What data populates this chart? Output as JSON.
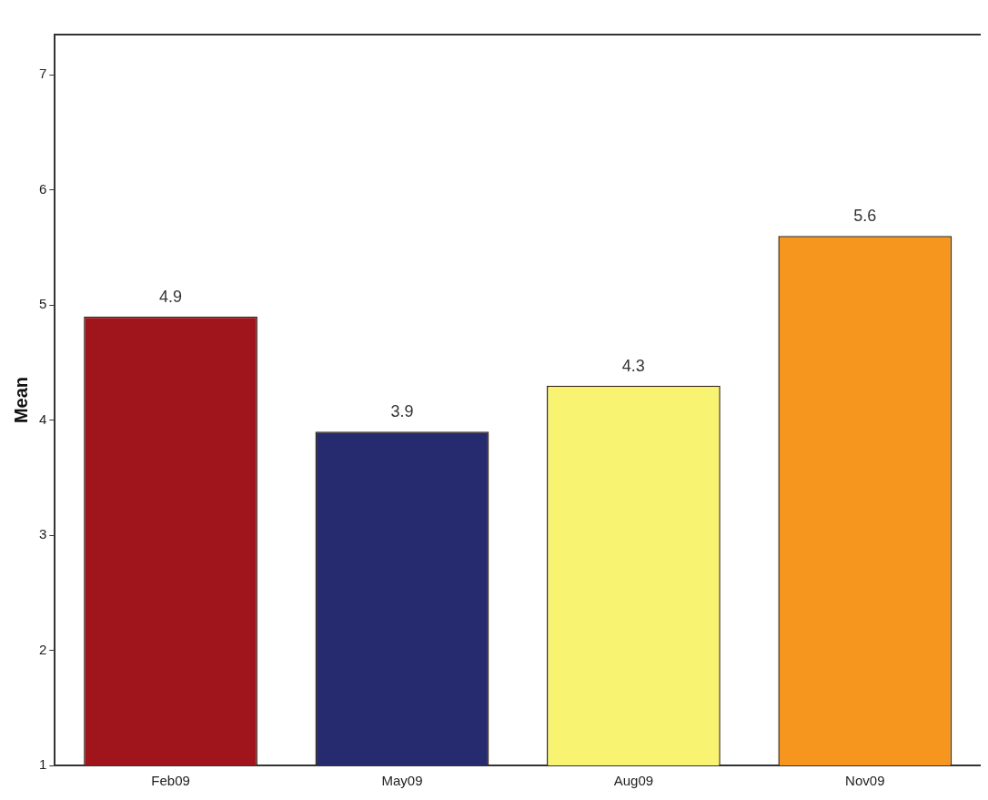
{
  "chart_data": {
    "type": "bar",
    "ylabel": "Mean",
    "categories": [
      "Feb09",
      "May09",
      "Aug09",
      "Nov09"
    ],
    "values": [
      4.9,
      3.9,
      4.3,
      5.6
    ],
    "colors": [
      "#a0151c",
      "#262a6e",
      "#f8f472",
      "#f7961e"
    ],
    "ylim": [
      1,
      7.35
    ],
    "yticks": [
      1,
      2,
      3,
      4,
      5,
      6,
      7
    ],
    "grid": false,
    "legend": false,
    "data_labels": true
  }
}
